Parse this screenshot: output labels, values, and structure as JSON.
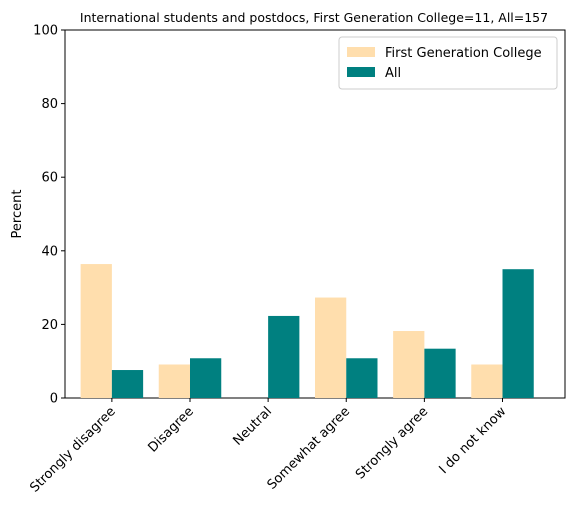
{
  "chart_data": {
    "type": "bar",
    "title": "International students and postdocs, First Generation College=11, All=157",
    "xlabel": "",
    "ylabel": "Percent",
    "ylim": [
      0,
      100
    ],
    "yticks": [
      0,
      20,
      40,
      60,
      80,
      100
    ],
    "categories": [
      "Strongly disagree",
      "Disagree",
      "Neutral",
      "Somewhat agree",
      "Strongly agree",
      "I do not know"
    ],
    "series": [
      {
        "name": "First Generation College",
        "color": "#ffdead",
        "values": [
          36.4,
          9.1,
          0.0,
          27.3,
          18.2,
          9.1
        ]
      },
      {
        "name": "All",
        "color": "#008080",
        "values": [
          7.6,
          10.8,
          22.3,
          10.8,
          13.4,
          35.0
        ]
      }
    ],
    "legend_position": "top-right",
    "grid": false
  }
}
